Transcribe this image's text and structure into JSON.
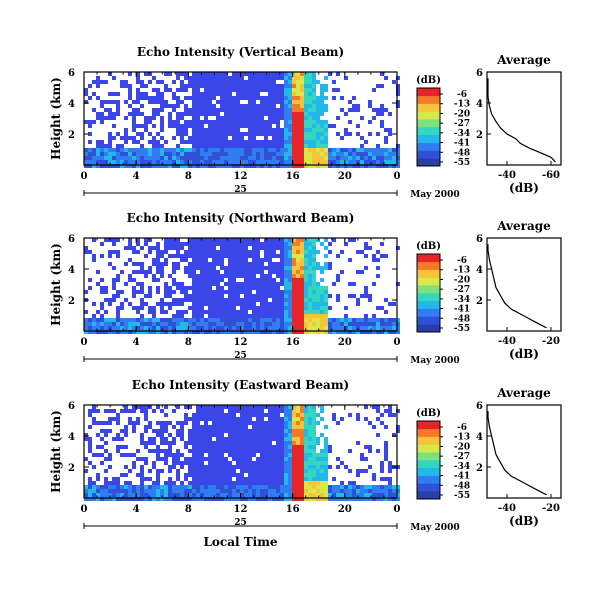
{
  "colors": {
    "colorbar": [
      "#2b3ea8",
      "#3050d8",
      "#2f7df0",
      "#22b8ea",
      "#34d6c0",
      "#7ee07a",
      "#d8e84a",
      "#f5c43a",
      "#f47a2a",
      "#e4262a"
    ],
    "noise_blue": "#3b46e8"
  },
  "chart_data": [
    {
      "type": "heatmap",
      "title": "Echo Intensity (Vertical Beam)",
      "ylabel": "Height (km)",
      "ylim": [
        0,
        6
      ],
      "yticks": [
        "2",
        "4",
        "6"
      ],
      "xlim": [
        0,
        24
      ],
      "xticks": [
        "0",
        "4",
        "8",
        "12",
        "16",
        "20",
        "0"
      ],
      "date_day": "25",
      "date_month_year": "May 2000",
      "colorbar_label": "(dB)",
      "colorbar_ticks": [
        "-6",
        "-13",
        "-20",
        "-27",
        "-34",
        "-41",
        "-48",
        "-55"
      ],
      "heavy_echo_hours": [
        15.8,
        16.6
      ],
      "average": {
        "title": "Average",
        "xlabel": "(dB)",
        "xticks": [
          "-40",
          "-60"
        ],
        "yticks": [
          "2",
          "4",
          "6"
        ],
        "profile_db": [
          [
            0.2,
            -62
          ],
          [
            0.5,
            -60
          ],
          [
            0.8,
            -55
          ],
          [
            1.1,
            -50
          ],
          [
            1.4,
            -46
          ],
          [
            1.7,
            -44
          ],
          [
            2.0,
            -40
          ],
          [
            2.4,
            -37
          ],
          [
            2.8,
            -35
          ],
          [
            3.3,
            -33
          ],
          [
            3.8,
            -32
          ],
          [
            4.4,
            -31
          ],
          [
            5.0,
            -30
          ],
          [
            5.6,
            -30
          ]
        ]
      }
    },
    {
      "type": "heatmap",
      "title": "Echo Intensity (Northward Beam)",
      "ylabel": "Height (km)",
      "ylim": [
        0,
        6
      ],
      "yticks": [
        "2",
        "4",
        "6"
      ],
      "xlim": [
        0,
        24
      ],
      "xticks": [
        "0",
        "4",
        "8",
        "12",
        "16",
        "20",
        "0"
      ],
      "date_day": "25",
      "date_month_year": "May 2000",
      "colorbar_label": "(dB)",
      "colorbar_ticks": [
        "-6",
        "-13",
        "-20",
        "-27",
        "-34",
        "-41",
        "-48",
        "-55"
      ],
      "heavy_echo_hours": [
        15.8,
        16.6
      ],
      "average": {
        "title": "Average",
        "xlabel": "(dB)",
        "xticks": [
          "-40",
          "-20"
        ],
        "yticks": [
          "2",
          "4",
          "6"
        ],
        "profile_db": [
          [
            0.2,
            -22
          ],
          [
            0.5,
            -26
          ],
          [
            0.8,
            -30
          ],
          [
            1.1,
            -34
          ],
          [
            1.4,
            -38
          ],
          [
            1.8,
            -41
          ],
          [
            2.3,
            -43
          ],
          [
            2.8,
            -45
          ],
          [
            3.4,
            -46
          ],
          [
            4.0,
            -47
          ],
          [
            4.6,
            -48
          ],
          [
            5.2,
            -49
          ],
          [
            5.6,
            -49
          ]
        ]
      }
    },
    {
      "type": "heatmap",
      "title": "Echo Intensity (Eastward Beam)",
      "ylabel": "Height (km)",
      "ylim": [
        0,
        6
      ],
      "yticks": [
        "2",
        "4",
        "6"
      ],
      "xlim": [
        0,
        24
      ],
      "xticks": [
        "0",
        "4",
        "8",
        "12",
        "16",
        "20",
        "0"
      ],
      "date_day": "25",
      "date_month_year": "May 2000",
      "colorbar_label": "(dB)",
      "colorbar_ticks": [
        "-6",
        "-13",
        "-20",
        "-27",
        "-34",
        "-41",
        "-48",
        "-55"
      ],
      "heavy_echo_hours": [
        15.8,
        16.6
      ],
      "xlabel": "Local Time",
      "average": {
        "title": "Average",
        "xlabel": "(dB)",
        "xticks": [
          "-40",
          "-20"
        ],
        "yticks": [
          "2",
          "4",
          "6"
        ],
        "profile_db": [
          [
            0.2,
            -22
          ],
          [
            0.5,
            -26
          ],
          [
            0.8,
            -30
          ],
          [
            1.1,
            -34
          ],
          [
            1.4,
            -38
          ],
          [
            1.8,
            -41
          ],
          [
            2.3,
            -43
          ],
          [
            2.8,
            -45
          ],
          [
            3.4,
            -46
          ],
          [
            4.0,
            -47
          ],
          [
            4.6,
            -48
          ],
          [
            5.2,
            -49
          ],
          [
            5.6,
            -49
          ]
        ]
      }
    }
  ]
}
